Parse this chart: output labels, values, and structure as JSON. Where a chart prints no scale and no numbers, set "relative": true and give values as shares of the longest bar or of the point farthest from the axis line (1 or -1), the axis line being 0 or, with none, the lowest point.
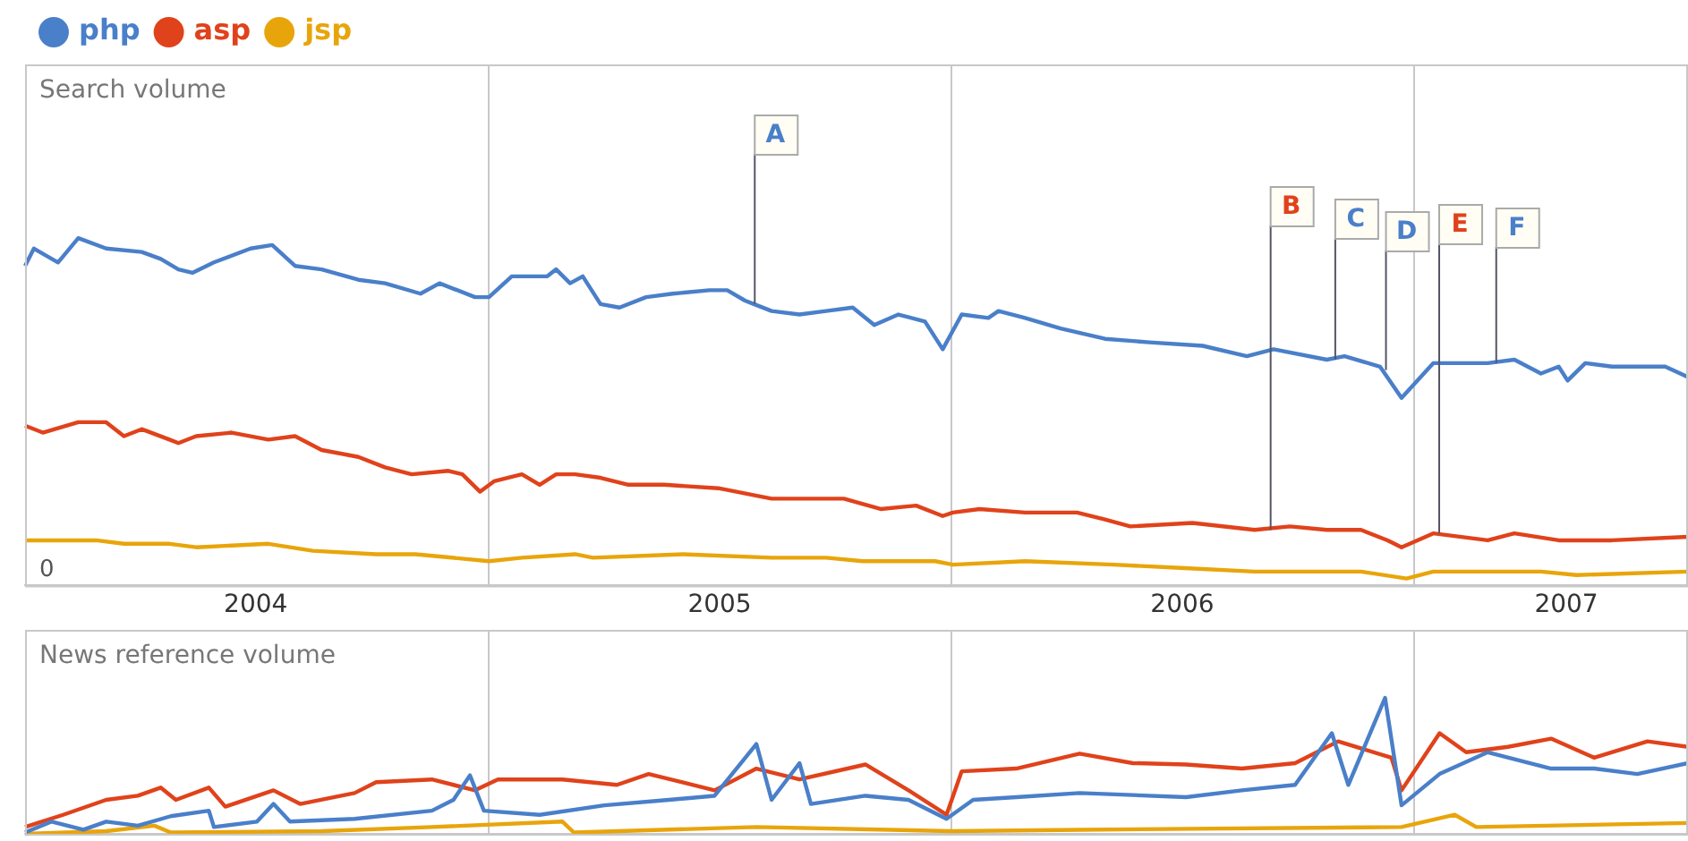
{
  "chart_data": [
    {
      "type": "line",
      "title": "Search volume",
      "relative": true,
      "legend": "top left",
      "grid": "x",
      "marker": "none",
      "xlim": [
        "2004-01-01",
        "2007-08-05"
      ],
      "xticks": [
        {
          "value": "2004-07-01",
          "label": "2004"
        },
        {
          "value": "2005-01-01",
          "label": null
        },
        {
          "value": "2005-07-02",
          "label": "2005"
        },
        {
          "value": "2006-01-01",
          "label": null
        },
        {
          "value": "2006-07-02",
          "label": "2006"
        },
        {
          "value": "2007-01-01",
          "label": null
        },
        {
          "value": "2007-05-01",
          "label": "2007"
        }
      ],
      "annotations": [
        "0",
        {
          "text": "A",
          "x": "2005-07-29",
          "y": 0.81
        },
        {
          "text": "B",
          "x": "2006-09-09",
          "y": 0.16
        },
        {
          "text": "C",
          "x": "2006-10-30",
          "y": 0.65
        },
        {
          "text": "D",
          "x": "2006-12-09",
          "y": 0.62
        },
        {
          "text": "E",
          "x": "2007-01-20",
          "y": 0.15
        },
        {
          "text": "F",
          "x": "2007-03-06",
          "y": 0.64
        }
      ],
      "series": [
        {
          "name": "php",
          "color": "#4a7fc9",
          "x": [
            "2004-01-01",
            "2004-01-08",
            "2004-01-27",
            "2004-02-12",
            "2004-03-05",
            "2004-04-02",
            "2004-04-17",
            "2004-05-01",
            "2004-05-12",
            "2004-05-29",
            "2004-06-27",
            "2004-07-14",
            "2004-08-01",
            "2004-08-22",
            "2004-09-20",
            "2004-10-11",
            "2004-11-08",
            "2004-11-23",
            "2004-12-21",
            "2005-01-01",
            "2005-01-19",
            "2005-02-16",
            "2005-02-23",
            "2005-03-06",
            "2005-03-16",
            "2005-03-30",
            "2005-04-14",
            "2005-05-05",
            "2005-05-26",
            "2005-06-24",
            "2005-07-08",
            "2005-07-22",
            "2005-07-29",
            "2005-08-12",
            "2005-09-03",
            "2005-09-24",
            "2005-10-15",
            "2005-11-01",
            "2005-11-20",
            "2005-12-11",
            "2005-12-25",
            "2006-01-09",
            "2006-01-30",
            "2006-02-07",
            "2006-02-28",
            "2006-03-28",
            "2006-05-02",
            "2006-06-06",
            "2006-07-18",
            "2006-08-22",
            "2006-09-12",
            "2006-10-24",
            "2006-11-07",
            "2006-12-05",
            "2006-12-22",
            "2007-01-16",
            "2007-02-28",
            "2007-03-21",
            "2007-04-11",
            "2007-04-25",
            "2007-05-02",
            "2007-05-16",
            "2007-06-06",
            "2007-07-18",
            "2007-08-05"
          ],
          "values": [
            0.92,
            0.97,
            0.93,
            1.0,
            0.97,
            0.96,
            0.94,
            0.91,
            0.9,
            0.93,
            0.97,
            0.98,
            0.92,
            0.91,
            0.88,
            0.87,
            0.84,
            0.87,
            0.83,
            0.83,
            0.89,
            0.89,
            0.91,
            0.87,
            0.89,
            0.81,
            0.8,
            0.83,
            0.84,
            0.85,
            0.85,
            0.82,
            0.81,
            0.79,
            0.78,
            0.79,
            0.8,
            0.75,
            0.78,
            0.76,
            0.68,
            0.78,
            0.77,
            0.79,
            0.77,
            0.74,
            0.71,
            0.7,
            0.69,
            0.66,
            0.68,
            0.65,
            0.66,
            0.63,
            0.54,
            0.64,
            0.64,
            0.65,
            0.61,
            0.63,
            0.59,
            0.64,
            0.63,
            0.63,
            0.6
          ]
        },
        {
          "name": "asp",
          "color": "#e0421b",
          "x": [
            "2004-01-01",
            "2004-01-15",
            "2004-02-12",
            "2004-03-05",
            "2004-03-19",
            "2004-04-02",
            "2004-04-24",
            "2004-05-01",
            "2004-05-15",
            "2004-06-12",
            "2004-07-11",
            "2004-08-01",
            "2004-08-22",
            "2004-09-20",
            "2004-10-11",
            "2004-11-01",
            "2004-11-30",
            "2004-12-11",
            "2004-12-25",
            "2005-01-05",
            "2005-01-27",
            "2005-02-10",
            "2005-02-23",
            "2005-03-10",
            "2005-03-30",
            "2005-04-21",
            "2005-05-19",
            "2005-07-01",
            "2005-08-12",
            "2005-10-08",
            "2005-11-06",
            "2005-12-04",
            "2005-12-25",
            "2006-01-02",
            "2006-01-23",
            "2006-02-28",
            "2006-04-10",
            "2006-05-02",
            "2006-05-22",
            "2006-07-10",
            "2006-08-28",
            "2006-09-25",
            "2006-10-24",
            "2006-11-20",
            "2006-12-11",
            "2006-12-22",
            "2007-01-16",
            "2007-02-28",
            "2007-03-21",
            "2007-04-25",
            "2007-05-09",
            "2007-06-06",
            "2007-08-05"
          ],
          "values": [
            0.46,
            0.44,
            0.47,
            0.47,
            0.43,
            0.45,
            0.42,
            0.41,
            0.43,
            0.44,
            0.42,
            0.43,
            0.39,
            0.37,
            0.34,
            0.32,
            0.33,
            0.32,
            0.27,
            0.3,
            0.32,
            0.29,
            0.32,
            0.32,
            0.31,
            0.29,
            0.29,
            0.28,
            0.25,
            0.25,
            0.22,
            0.23,
            0.2,
            0.21,
            0.22,
            0.21,
            0.21,
            0.19,
            0.17,
            0.18,
            0.16,
            0.17,
            0.16,
            0.16,
            0.13,
            0.11,
            0.15,
            0.13,
            0.15,
            0.13,
            0.13,
            0.13,
            0.14
          ]
        },
        {
          "name": "jsp",
          "color": "#e8a50b",
          "x": [
            "2004-01-01",
            "2004-01-29",
            "2004-02-26",
            "2004-03-19",
            "2004-04-24",
            "2004-05-15",
            "2004-07-11",
            "2004-08-15",
            "2004-10-04",
            "2004-11-04",
            "2005-01-01",
            "2005-01-27",
            "2005-03-10",
            "2005-03-24",
            "2005-06-03",
            "2005-08-12",
            "2005-09-24",
            "2005-10-23",
            "2005-12-19",
            "2006-01-02",
            "2006-02-28",
            "2006-05-09",
            "2006-07-04",
            "2006-08-28",
            "2006-11-20",
            "2006-12-26",
            "2007-01-16",
            "2007-04-11",
            "2007-05-09",
            "2007-08-05"
          ],
          "values": [
            0.13,
            0.13,
            0.13,
            0.12,
            0.12,
            0.11,
            0.12,
            0.1,
            0.09,
            0.09,
            0.07,
            0.08,
            0.09,
            0.08,
            0.09,
            0.08,
            0.08,
            0.07,
            0.07,
            0.06,
            0.07,
            0.06,
            0.05,
            0.04,
            0.04,
            0.02,
            0.04,
            0.04,
            0.03,
            0.04
          ]
        }
      ]
    },
    {
      "type": "line",
      "title": "News reference volume",
      "relative": true,
      "legend": false,
      "grid": "x",
      "marker": "none",
      "tick_labels": false,
      "xlim": [
        "2004-01-01",
        "2007-08-05"
      ],
      "xticks": [
        {
          "value": "2005-01-01",
          "label": null
        },
        {
          "value": "2006-01-01",
          "label": null
        },
        {
          "value": "2007-01-01",
          "label": null
        }
      ],
      "series": [
        {
          "color": "#4a7fc9",
          "x": [
            "2004-01-01",
            "2004-01-22",
            "2004-02-16",
            "2004-03-05",
            "2004-03-30",
            "2004-04-25",
            "2004-05-25",
            "2004-05-29",
            "2004-07-02",
            "2004-07-15",
            "2004-07-28",
            "2004-09-17",
            "2004-11-17",
            "2004-12-04",
            "2004-12-17",
            "2004-12-28",
            "2005-02-10",
            "2005-04-02",
            "2005-05-23",
            "2005-06-28",
            "2005-07-31",
            "2005-08-12",
            "2005-09-03",
            "2005-09-12",
            "2005-10-25",
            "2005-11-28",
            "2005-12-28",
            "2006-01-18",
            "2006-02-21",
            "2006-04-12",
            "2006-07-05",
            "2006-08-18",
            "2006-09-29",
            "2006-10-28",
            "2006-11-10",
            "2006-12-09",
            "2006-12-22",
            "2007-01-21",
            "2007-02-28",
            "2007-04-19",
            "2007-05-23",
            "2007-06-26",
            "2007-08-05"
          ],
          "values": [
            0.01,
            0.09,
            0.03,
            0.09,
            0.06,
            0.13,
            0.17,
            0.05,
            0.09,
            0.22,
            0.09,
            0.11,
            0.17,
            0.25,
            0.43,
            0.17,
            0.14,
            0.21,
            0.25,
            0.28,
            0.66,
            0.25,
            0.52,
            0.22,
            0.28,
            0.25,
            0.11,
            0.25,
            0.27,
            0.3,
            0.27,
            0.32,
            0.36,
            0.74,
            0.36,
            1.0,
            0.21,
            0.44,
            0.6,
            0.48,
            0.48,
            0.44,
            0.52
          ]
        },
        {
          "color": "#e0421b",
          "x": [
            "2004-01-01",
            "2004-01-31",
            "2004-03-05",
            "2004-03-30",
            "2004-04-17",
            "2004-04-29",
            "2004-05-25",
            "2004-06-07",
            "2004-07-15",
            "2004-08-05",
            "2004-09-17",
            "2004-10-04",
            "2004-11-17",
            "2004-12-21",
            "2005-01-08",
            "2005-02-28",
            "2005-04-12",
            "2005-05-07",
            "2005-06-28",
            "2005-07-31",
            "2005-09-03",
            "2005-10-25",
            "2005-11-28",
            "2005-12-28",
            "2006-01-09",
            "2006-02-21",
            "2006-04-12",
            "2006-05-24",
            "2006-07-05",
            "2006-08-18",
            "2006-09-29",
            "2006-11-02",
            "2006-12-14",
            "2006-12-22",
            "2007-01-21",
            "2007-02-11",
            "2007-03-16",
            "2007-04-19",
            "2007-05-23",
            "2007-07-04",
            "2007-08-05"
          ],
          "values": [
            0.05,
            0.14,
            0.25,
            0.28,
            0.34,
            0.25,
            0.34,
            0.2,
            0.32,
            0.22,
            0.3,
            0.38,
            0.4,
            0.32,
            0.4,
            0.4,
            0.36,
            0.44,
            0.32,
            0.48,
            0.4,
            0.51,
            0.32,
            0.14,
            0.46,
            0.48,
            0.59,
            0.52,
            0.51,
            0.48,
            0.52,
            0.68,
            0.56,
            0.32,
            0.74,
            0.6,
            0.64,
            0.7,
            0.56,
            0.68,
            0.64
          ]
        },
        {
          "color": "#e8a50b",
          "x": [
            "2004-01-01",
            "2004-03-05",
            "2004-04-12",
            "2004-04-25",
            "2004-08-22",
            "2004-11-17",
            "2005-02-28",
            "2005-03-09",
            "2005-07-31",
            "2006-01-01",
            "2006-04-12",
            "2006-12-22",
            "2007-02-02",
            "2007-02-19",
            "2007-08-05"
          ],
          "values": [
            0,
            0.02,
            0.06,
            0.01,
            0.02,
            0.05,
            0.09,
            0.01,
            0.05,
            0.02,
            0.03,
            0.05,
            0.14,
            0.05,
            0.08
          ]
        }
      ]
    }
  ]
}
